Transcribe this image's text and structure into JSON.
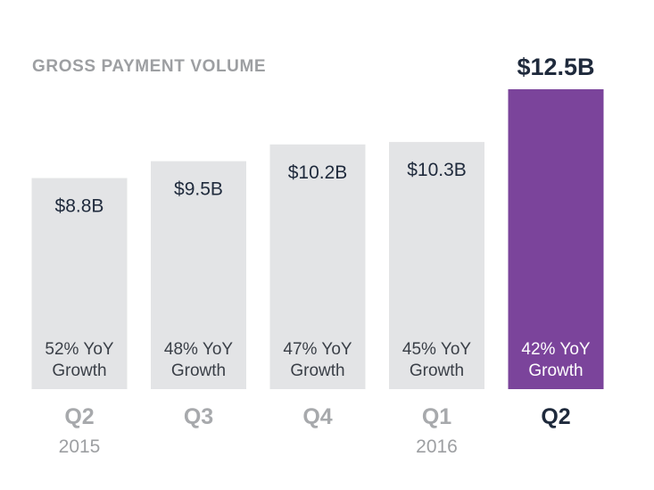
{
  "chart_data": {
    "type": "bar",
    "title": "GROSS PAYMENT VOLUME",
    "categories": [
      "Q2",
      "Q3",
      "Q4",
      "Q1",
      "Q2"
    ],
    "years": [
      "2015",
      "",
      "",
      "2016",
      ""
    ],
    "values": [
      8.8,
      9.5,
      10.2,
      10.3,
      12.5
    ],
    "value_labels": [
      "$8.8B",
      "$9.5B",
      "$10.2B",
      "$10.3B",
      "$12.5B"
    ],
    "growth_line1": [
      "52% YoY",
      "48% YoY",
      "47% YoY",
      "45% YoY",
      "42% YoY"
    ],
    "growth_line2": [
      "Growth",
      "Growth",
      "Growth",
      "Growth",
      "Growth"
    ],
    "highlight_index": 4,
    "unit": "$B",
    "grid": false,
    "colors": {
      "bar": "#e3e4e6",
      "highlight_bar": "#7b449b",
      "title": "#9d9fa2",
      "value_text": "#1f2a3c",
      "growth_text": "#3a3f47",
      "highlight_growth_text": "#ffffff",
      "quarter_text": "#a7a9ac",
      "highlight_quarter_text": "#1f2a3c",
      "year_text": "#9d9fa2"
    }
  }
}
